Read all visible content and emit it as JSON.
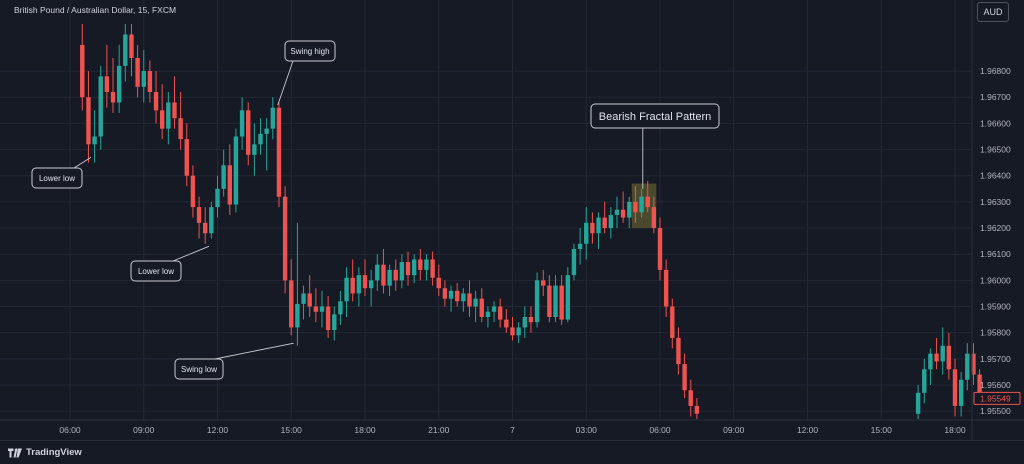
{
  "header": {
    "symbol_line": "British Pound / Australian Dollar, 15, FXCM"
  },
  "currency_button": {
    "label": "AUD"
  },
  "footer": {
    "brand": "TradingView"
  },
  "colors": {
    "background": "#161a25",
    "up_candle": "#26a69a",
    "down_candle": "#ef5350",
    "price_label_text": "#ef5350",
    "highlight_box": "#5d5a2f",
    "callout_border": "#c9cbd2"
  },
  "chart_data": {
    "type": "candlestick",
    "title": "British Pound / Australian Dollar, 15, FXCM",
    "y_axis": {
      "ylim": [
        1.9547,
        1.9698
      ],
      "ticks": [
        1.955,
        1.956,
        1.957,
        1.958,
        1.959,
        1.96,
        1.961,
        1.962,
        1.963,
        1.964,
        1.965,
        1.966,
        1.967,
        1.968
      ],
      "tick_labels": [
        "1.95500",
        "1.95600",
        "1.95700",
        "1.95800",
        "1.95900",
        "1.96000",
        "1.96100",
        "1.96200",
        "1.96300",
        "1.96400",
        "1.96500",
        "1.96600",
        "1.96700",
        "1.96800"
      ]
    },
    "x_axis": {
      "tick_labels": [
        "06:00",
        "09:00",
        "12:00",
        "15:00",
        "18:00",
        "21:00",
        "7",
        "03:00",
        "06:00",
        "09:00",
        "12:00",
        "15:00",
        "18:00"
      ],
      "tick_hours": [
        6,
        9,
        12,
        15,
        18,
        21,
        24,
        27,
        30,
        33,
        36,
        39,
        42
      ]
    },
    "last_price": "1.95549",
    "gap": {
      "from_hour": 32.0,
      "to_hour": 40.3
    },
    "candles": [
      {
        "t": 6.5,
        "o": 1.969,
        "h": 1.9698,
        "l": 1.9665,
        "c": 1.967
      },
      {
        "t": 6.75,
        "o": 1.967,
        "h": 1.968,
        "l": 1.9645,
        "c": 1.9652
      },
      {
        "t": 7.0,
        "o": 1.9652,
        "h": 1.9665,
        "l": 1.9645,
        "c": 1.9655
      },
      {
        "t": 7.25,
        "o": 1.9655,
        "h": 1.9682,
        "l": 1.965,
        "c": 1.9678
      },
      {
        "t": 7.5,
        "o": 1.9678,
        "h": 1.969,
        "l": 1.9666,
        "c": 1.9672
      },
      {
        "t": 7.75,
        "o": 1.9672,
        "h": 1.9685,
        "l": 1.9664,
        "c": 1.9668
      },
      {
        "t": 8.0,
        "o": 1.9668,
        "h": 1.969,
        "l": 1.9664,
        "c": 1.9682
      },
      {
        "t": 8.25,
        "o": 1.9682,
        "h": 1.9698,
        "l": 1.9676,
        "c": 1.9694
      },
      {
        "t": 8.5,
        "o": 1.9694,
        "h": 1.9698,
        "l": 1.9678,
        "c": 1.9685
      },
      {
        "t": 8.75,
        "o": 1.9685,
        "h": 1.969,
        "l": 1.967,
        "c": 1.9674
      },
      {
        "t": 9.0,
        "o": 1.9674,
        "h": 1.9688,
        "l": 1.9668,
        "c": 1.968
      },
      {
        "t": 9.25,
        "o": 1.968,
        "h": 1.9684,
        "l": 1.9668,
        "c": 1.9672
      },
      {
        "t": 9.5,
        "o": 1.9672,
        "h": 1.968,
        "l": 1.966,
        "c": 1.9665
      },
      {
        "t": 9.75,
        "o": 1.9665,
        "h": 1.9675,
        "l": 1.9654,
        "c": 1.9658
      },
      {
        "t": 10.0,
        "o": 1.9658,
        "h": 1.9672,
        "l": 1.9652,
        "c": 1.9668
      },
      {
        "t": 10.25,
        "o": 1.9668,
        "h": 1.9678,
        "l": 1.9658,
        "c": 1.9662
      },
      {
        "t": 10.5,
        "o": 1.9662,
        "h": 1.9672,
        "l": 1.965,
        "c": 1.9654
      },
      {
        "t": 10.75,
        "o": 1.9654,
        "h": 1.966,
        "l": 1.9636,
        "c": 1.964
      },
      {
        "t": 11.0,
        "o": 1.964,
        "h": 1.9644,
        "l": 1.9624,
        "c": 1.9628
      },
      {
        "t": 11.25,
        "o": 1.9628,
        "h": 1.9632,
        "l": 1.9616,
        "c": 1.9622
      },
      {
        "t": 11.5,
        "o": 1.9622,
        "h": 1.9628,
        "l": 1.9614,
        "c": 1.9618
      },
      {
        "t": 11.75,
        "o": 1.9618,
        "h": 1.963,
        "l": 1.9616,
        "c": 1.9628
      },
      {
        "t": 12.0,
        "o": 1.9628,
        "h": 1.964,
        "l": 1.9624,
        "c": 1.9635
      },
      {
        "t": 12.25,
        "o": 1.9635,
        "h": 1.965,
        "l": 1.9632,
        "c": 1.9644
      },
      {
        "t": 12.5,
        "o": 1.9644,
        "h": 1.9652,
        "l": 1.9625,
        "c": 1.9629
      },
      {
        "t": 12.75,
        "o": 1.9629,
        "h": 1.9658,
        "l": 1.9626,
        "c": 1.9655
      },
      {
        "t": 13.0,
        "o": 1.9655,
        "h": 1.967,
        "l": 1.965,
        "c": 1.9665
      },
      {
        "t": 13.25,
        "o": 1.9665,
        "h": 1.9668,
        "l": 1.9644,
        "c": 1.9648
      },
      {
        "t": 13.5,
        "o": 1.9648,
        "h": 1.966,
        "l": 1.964,
        "c": 1.9652
      },
      {
        "t": 13.75,
        "o": 1.9652,
        "h": 1.9662,
        "l": 1.9648,
        "c": 1.9656
      },
      {
        "t": 14.0,
        "o": 1.9656,
        "h": 1.9662,
        "l": 1.9642,
        "c": 1.9658
      },
      {
        "t": 14.25,
        "o": 1.9658,
        "h": 1.967,
        "l": 1.9654,
        "c": 1.9666
      },
      {
        "t": 14.5,
        "o": 1.9666,
        "h": 1.9668,
        "l": 1.9628,
        "c": 1.9632
      },
      {
        "t": 14.75,
        "o": 1.9632,
        "h": 1.9636,
        "l": 1.9595,
        "c": 1.96
      },
      {
        "t": 15.0,
        "o": 1.96,
        "h": 1.9608,
        "l": 1.9579,
        "c": 1.9582
      },
      {
        "t": 15.25,
        "o": 1.9582,
        "h": 1.9622,
        "l": 1.9575,
        "c": 1.9591
      },
      {
        "t": 15.5,
        "o": 1.9591,
        "h": 1.9598,
        "l": 1.9585,
        "c": 1.9595
      },
      {
        "t": 15.75,
        "o": 1.9595,
        "h": 1.9602,
        "l": 1.9586,
        "c": 1.959
      },
      {
        "t": 16.0,
        "o": 1.959,
        "h": 1.9597,
        "l": 1.9584,
        "c": 1.9588
      },
      {
        "t": 16.25,
        "o": 1.9588,
        "h": 1.9596,
        "l": 1.9582,
        "c": 1.959
      },
      {
        "t": 16.5,
        "o": 1.959,
        "h": 1.9594,
        "l": 1.9578,
        "c": 1.9581
      },
      {
        "t": 16.75,
        "o": 1.9581,
        "h": 1.959,
        "l": 1.9577,
        "c": 1.9587
      },
      {
        "t": 17.0,
        "o": 1.9587,
        "h": 1.9596,
        "l": 1.9583,
        "c": 1.9592
      },
      {
        "t": 17.25,
        "o": 1.9592,
        "h": 1.9605,
        "l": 1.9586,
        "c": 1.9601
      },
      {
        "t": 17.5,
        "o": 1.9601,
        "h": 1.9608,
        "l": 1.9592,
        "c": 1.9595
      },
      {
        "t": 17.75,
        "o": 1.9595,
        "h": 1.9605,
        "l": 1.959,
        "c": 1.9602
      },
      {
        "t": 18.0,
        "o": 1.9602,
        "h": 1.9608,
        "l": 1.9594,
        "c": 1.9597
      },
      {
        "t": 18.25,
        "o": 1.9597,
        "h": 1.9604,
        "l": 1.959,
        "c": 1.96
      },
      {
        "t": 18.5,
        "o": 1.96,
        "h": 1.961,
        "l": 1.9596,
        "c": 1.9606
      },
      {
        "t": 18.75,
        "o": 1.9606,
        "h": 1.9612,
        "l": 1.9595,
        "c": 1.9598
      },
      {
        "t": 19.0,
        "o": 1.9598,
        "h": 1.9606,
        "l": 1.9594,
        "c": 1.9604
      },
      {
        "t": 19.25,
        "o": 1.9604,
        "h": 1.9608,
        "l": 1.9596,
        "c": 1.96
      },
      {
        "t": 19.5,
        "o": 1.96,
        "h": 1.961,
        "l": 1.9597,
        "c": 1.9607
      },
      {
        "t": 19.75,
        "o": 1.9607,
        "h": 1.9611,
        "l": 1.9598,
        "c": 1.9602
      },
      {
        "t": 20.0,
        "o": 1.9602,
        "h": 1.961,
        "l": 1.9599,
        "c": 1.9608
      },
      {
        "t": 20.25,
        "o": 1.9608,
        "h": 1.9612,
        "l": 1.96,
        "c": 1.9604
      },
      {
        "t": 20.5,
        "o": 1.9604,
        "h": 1.961,
        "l": 1.96,
        "c": 1.9608
      },
      {
        "t": 20.75,
        "o": 1.9608,
        "h": 1.9611,
        "l": 1.9598,
        "c": 1.9601
      },
      {
        "t": 21.0,
        "o": 1.9601,
        "h": 1.9606,
        "l": 1.9594,
        "c": 1.9597
      },
      {
        "t": 21.25,
        "o": 1.9597,
        "h": 1.96,
        "l": 1.959,
        "c": 1.9593
      },
      {
        "t": 21.5,
        "o": 1.9593,
        "h": 1.9598,
        "l": 1.9588,
        "c": 1.9596
      },
      {
        "t": 21.75,
        "o": 1.9596,
        "h": 1.9599,
        "l": 1.959,
        "c": 1.9592
      },
      {
        "t": 22.0,
        "o": 1.9592,
        "h": 1.9597,
        "l": 1.9588,
        "c": 1.9595
      },
      {
        "t": 22.25,
        "o": 1.9595,
        "h": 1.96,
        "l": 1.9586,
        "c": 1.959
      },
      {
        "t": 22.5,
        "o": 1.959,
        "h": 1.9596,
        "l": 1.9584,
        "c": 1.9593
      },
      {
        "t": 22.75,
        "o": 1.9593,
        "h": 1.9597,
        "l": 1.9584,
        "c": 1.9586
      },
      {
        "t": 23.0,
        "o": 1.9586,
        "h": 1.959,
        "l": 1.9582,
        "c": 1.9588
      },
      {
        "t": 23.25,
        "o": 1.9588,
        "h": 1.9592,
        "l": 1.9584,
        "c": 1.959
      },
      {
        "t": 23.5,
        "o": 1.959,
        "h": 1.9593,
        "l": 1.9582,
        "c": 1.9585
      },
      {
        "t": 23.75,
        "o": 1.9585,
        "h": 1.9589,
        "l": 1.958,
        "c": 1.9582
      },
      {
        "t": 24.0,
        "o": 1.9582,
        "h": 1.9586,
        "l": 1.9577,
        "c": 1.9579
      },
      {
        "t": 24.25,
        "o": 1.9579,
        "h": 1.9584,
        "l": 1.9576,
        "c": 1.9582
      },
      {
        "t": 24.5,
        "o": 1.9582,
        "h": 1.959,
        "l": 1.9578,
        "c": 1.9586
      },
      {
        "t": 24.75,
        "o": 1.9586,
        "h": 1.959,
        "l": 1.958,
        "c": 1.9584
      },
      {
        "t": 25.0,
        "o": 1.9584,
        "h": 1.9603,
        "l": 1.9582,
        "c": 1.96
      },
      {
        "t": 25.25,
        "o": 1.96,
        "h": 1.9604,
        "l": 1.9594,
        "c": 1.9598
      },
      {
        "t": 25.5,
        "o": 1.9598,
        "h": 1.9602,
        "l": 1.9584,
        "c": 1.9586
      },
      {
        "t": 25.75,
        "o": 1.9586,
        "h": 1.9602,
        "l": 1.9584,
        "c": 1.9598
      },
      {
        "t": 26.0,
        "o": 1.9598,
        "h": 1.9602,
        "l": 1.9583,
        "c": 1.9585
      },
      {
        "t": 26.25,
        "o": 1.9585,
        "h": 1.9605,
        "l": 1.9584,
        "c": 1.9602
      },
      {
        "t": 26.5,
        "o": 1.9602,
        "h": 1.9614,
        "l": 1.96,
        "c": 1.9612
      },
      {
        "t": 26.75,
        "o": 1.9612,
        "h": 1.962,
        "l": 1.9606,
        "c": 1.9614
      },
      {
        "t": 27.0,
        "o": 1.9614,
        "h": 1.9628,
        "l": 1.9608,
        "c": 1.9622
      },
      {
        "t": 27.25,
        "o": 1.9622,
        "h": 1.9626,
        "l": 1.9614,
        "c": 1.9618
      },
      {
        "t": 27.5,
        "o": 1.9618,
        "h": 1.9626,
        "l": 1.9612,
        "c": 1.9624
      },
      {
        "t": 27.75,
        "o": 1.9624,
        "h": 1.963,
        "l": 1.9618,
        "c": 1.962
      },
      {
        "t": 28.0,
        "o": 1.962,
        "h": 1.9628,
        "l": 1.9616,
        "c": 1.9625
      },
      {
        "t": 28.25,
        "o": 1.9625,
        "h": 1.9632,
        "l": 1.962,
        "c": 1.9627
      },
      {
        "t": 28.5,
        "o": 1.9627,
        "h": 1.9634,
        "l": 1.9622,
        "c": 1.9624
      },
      {
        "t": 28.75,
        "o": 1.9624,
        "h": 1.9632,
        "l": 1.962,
        "c": 1.963
      },
      {
        "t": 29.0,
        "o": 1.963,
        "h": 1.9636,
        "l": 1.9622,
        "c": 1.9626
      },
      {
        "t": 29.25,
        "o": 1.9626,
        "h": 1.9635,
        "l": 1.9624,
        "c": 1.9632
      },
      {
        "t": 29.5,
        "o": 1.9632,
        "h": 1.9638,
        "l": 1.9626,
        "c": 1.9628
      },
      {
        "t": 29.75,
        "o": 1.9628,
        "h": 1.9632,
        "l": 1.9618,
        "c": 1.962
      },
      {
        "t": 30.0,
        "o": 1.962,
        "h": 1.9624,
        "l": 1.96,
        "c": 1.9604
      },
      {
        "t": 30.25,
        "o": 1.9604,
        "h": 1.9608,
        "l": 1.9586,
        "c": 1.959
      },
      {
        "t": 30.5,
        "o": 1.959,
        "h": 1.9593,
        "l": 1.9574,
        "c": 1.9578
      },
      {
        "t": 30.75,
        "o": 1.9578,
        "h": 1.9582,
        "l": 1.9564,
        "c": 1.9568
      },
      {
        "t": 31.0,
        "o": 1.9568,
        "h": 1.9572,
        "l": 1.9555,
        "c": 1.9558
      },
      {
        "t": 31.25,
        "o": 1.9558,
        "h": 1.9562,
        "l": 1.9548,
        "c": 1.9552
      },
      {
        "t": 31.5,
        "o": 1.9552,
        "h": 1.9555,
        "l": 1.9547,
        "c": 1.9549
      },
      {
        "t": 40.5,
        "o": 1.9549,
        "h": 1.956,
        "l": 1.9547,
        "c": 1.9557
      },
      {
        "t": 40.75,
        "o": 1.9557,
        "h": 1.957,
        "l": 1.9553,
        "c": 1.9566
      },
      {
        "t": 41.0,
        "o": 1.9566,
        "h": 1.9574,
        "l": 1.956,
        "c": 1.9572
      },
      {
        "t": 41.25,
        "o": 1.9572,
        "h": 1.9578,
        "l": 1.9566,
        "c": 1.9569
      },
      {
        "t": 41.5,
        "o": 1.9569,
        "h": 1.9582,
        "l": 1.9564,
        "c": 1.9575
      },
      {
        "t": 41.75,
        "o": 1.9575,
        "h": 1.958,
        "l": 1.9562,
        "c": 1.9566
      },
      {
        "t": 42.0,
        "o": 1.9566,
        "h": 1.957,
        "l": 1.9548,
        "c": 1.9552
      },
      {
        "t": 42.25,
        "o": 1.9552,
        "h": 1.9565,
        "l": 1.9548,
        "c": 1.9562
      },
      {
        "t": 42.5,
        "o": 1.9562,
        "h": 1.9576,
        "l": 1.9558,
        "c": 1.9572
      },
      {
        "t": 42.75,
        "o": 1.9572,
        "h": 1.9576,
        "l": 1.956,
        "c": 1.9564
      },
      {
        "t": 43.0,
        "o": 1.9564,
        "h": 1.9566,
        "l": 1.9553,
        "c": 1.9556
      }
    ],
    "annotations": [
      {
        "label": "Lower low",
        "anchor_t": 6.85,
        "anchor_p": 1.9647
      },
      {
        "label": "Lower low",
        "anchor_t": 11.65,
        "anchor_p": 1.9613
      },
      {
        "label": "Swing high",
        "anchor_t": 14.45,
        "anchor_p": 1.9667
      },
      {
        "label": "Swing low",
        "anchor_t": 15.1,
        "anchor_p": 1.9576
      },
      {
        "label": "Bearish Fractal Pattern",
        "anchor_t": 29.3,
        "anchor_p": 1.9635
      }
    ],
    "highlight": {
      "t_start": 28.85,
      "t_end": 29.85,
      "p_low": 1.962,
      "p_high": 1.9637
    }
  }
}
